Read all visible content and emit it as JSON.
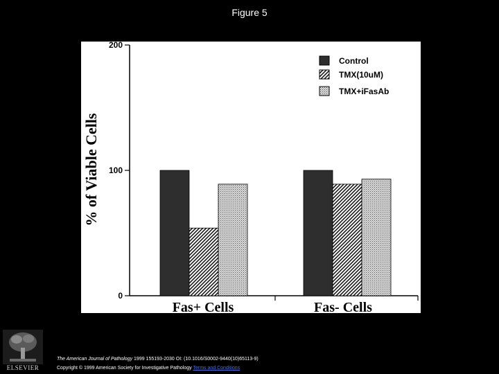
{
  "slide": {
    "title": "Figure 5"
  },
  "chart_data": {
    "type": "bar",
    "title": "",
    "xlabel": "",
    "ylabel": "% of Viable Cells",
    "ylim": [
      0,
      200
    ],
    "yticks": [
      "0",
      "100",
      "200"
    ],
    "categories": [
      "Fas+ Cells",
      "Fas- Cells"
    ],
    "series": [
      {
        "name": "Control",
        "pattern": "solid",
        "values": [
          100,
          100
        ]
      },
      {
        "name": "TMX(10uM)",
        "pattern": "hatched",
        "values": [
          54,
          89
        ]
      },
      {
        "name": "TMX+iFasAb",
        "pattern": "stippled",
        "values": [
          89,
          93
        ]
      }
    ],
    "legend_position": "top-right",
    "colors": {
      "solid": "#2e2e2e",
      "hatched": "#4a4a4a",
      "stippled": "#bdbdbd",
      "axis": "#000000"
    }
  },
  "footer": {
    "journal": "The American Journal of Pathology",
    "citation_rest": "1999 155193-2030 OI: (10.1016/S0002-9440(10)65113-9)",
    "copyright": "Copyright © 1999 American Society for Investigative Pathology",
    "terms_link": "Terms and Conditions"
  },
  "publisher": {
    "name": "ELSEVIER"
  }
}
